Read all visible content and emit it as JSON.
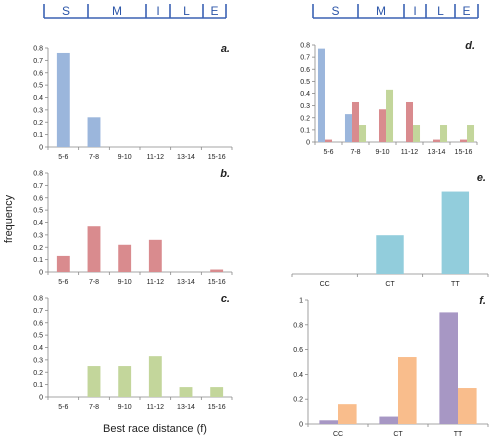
{
  "ylabel": "frequency",
  "xlabel": "Best race distance (f)",
  "bands": [
    "S",
    "M",
    "I",
    "L",
    "E"
  ],
  "band_color": "#3b62b4",
  "colors": {
    "blue": "#9bb6dc",
    "red": "#d98b8e",
    "green": "#c3d69b",
    "cyan": "#92cddc",
    "purple": "#a797c4",
    "orange": "#f9bd8c"
  },
  "chart_data": [
    {
      "panel": "a.",
      "type": "bar",
      "categories": [
        "5-6",
        "7-8",
        "9-10",
        "11-12",
        "13-14",
        "15-16"
      ],
      "ylim": [
        0,
        0.8
      ],
      "yticks": [
        "0",
        "0.1",
        "0.2",
        "0.3",
        "0.4",
        "0.5",
        "0.6",
        "0.7",
        "0.8"
      ],
      "series": [
        {
          "color": "#9bb6dc",
          "values": [
            0.76,
            0.24,
            0,
            0,
            0,
            0
          ]
        }
      ]
    },
    {
      "panel": "b.",
      "type": "bar",
      "categories": [
        "5-6",
        "7-8",
        "9-10",
        "11-12",
        "13-14",
        "15-16"
      ],
      "ylim": [
        0,
        0.8
      ],
      "yticks": [
        "0",
        "0.1",
        "0.2",
        "0.3",
        "0.4",
        "0.5",
        "0.6",
        "0.7",
        "0.8"
      ],
      "series": [
        {
          "color": "#d98b8e",
          "values": [
            0.13,
            0.37,
            0.22,
            0.26,
            0,
            0.02
          ]
        }
      ]
    },
    {
      "panel": "c.",
      "type": "bar",
      "categories": [
        "5-6",
        "7-8",
        "9-10",
        "11-12",
        "13-14",
        "15-16"
      ],
      "ylim": [
        0,
        0.8
      ],
      "yticks": [
        "0",
        "0.1",
        "0.2",
        "0.3",
        "0.4",
        "0.5",
        "0.6",
        "0.7",
        "0.8"
      ],
      "series": [
        {
          "color": "#c3d69b",
          "values": [
            0,
            0.25,
            0.25,
            0.33,
            0.08,
            0.08
          ]
        }
      ]
    },
    {
      "panel": "d.",
      "type": "bar",
      "categories": [
        "5-6",
        "7-8",
        "9-10",
        "11-12",
        "13-14",
        "15-16"
      ],
      "ylim": [
        0,
        0.8
      ],
      "yticks": [
        "0",
        "0.1",
        "0.2",
        "0.3",
        "0.4",
        "0.5",
        "0.6",
        "0.7",
        "0.8"
      ],
      "series": [
        {
          "color": "#9bb6dc",
          "values": [
            0.77,
            0.23,
            0,
            0,
            0,
            0
          ]
        },
        {
          "color": "#d98b8e",
          "values": [
            0.02,
            0.33,
            0.27,
            0.33,
            0.02,
            0.02
          ]
        },
        {
          "color": "#c3d69b",
          "values": [
            0,
            0.14,
            0.43,
            0.14,
            0.14,
            0.14
          ]
        }
      ]
    },
    {
      "panel": "e.",
      "type": "bar",
      "categories": [
        "CC",
        "CT",
        "TT"
      ],
      "ylim": [
        0,
        0.8
      ],
      "yticks": [],
      "series": [
        {
          "color": "#92cddc",
          "values": [
            0,
            0.32,
            0.68
          ]
        }
      ]
    },
    {
      "panel": "f.",
      "type": "bar",
      "categories": [
        "CC",
        "CT",
        "TT"
      ],
      "ylim": [
        0,
        1
      ],
      "yticks": [
        "0",
        "0.2",
        "0.4",
        "0.6",
        "0.8",
        "1"
      ],
      "series": [
        {
          "color": "#a797c4",
          "values": [
            0.03,
            0.06,
            0.9
          ]
        },
        {
          "color": "#f9bd8c",
          "values": [
            0.16,
            0.54,
            0.29
          ]
        }
      ]
    }
  ]
}
